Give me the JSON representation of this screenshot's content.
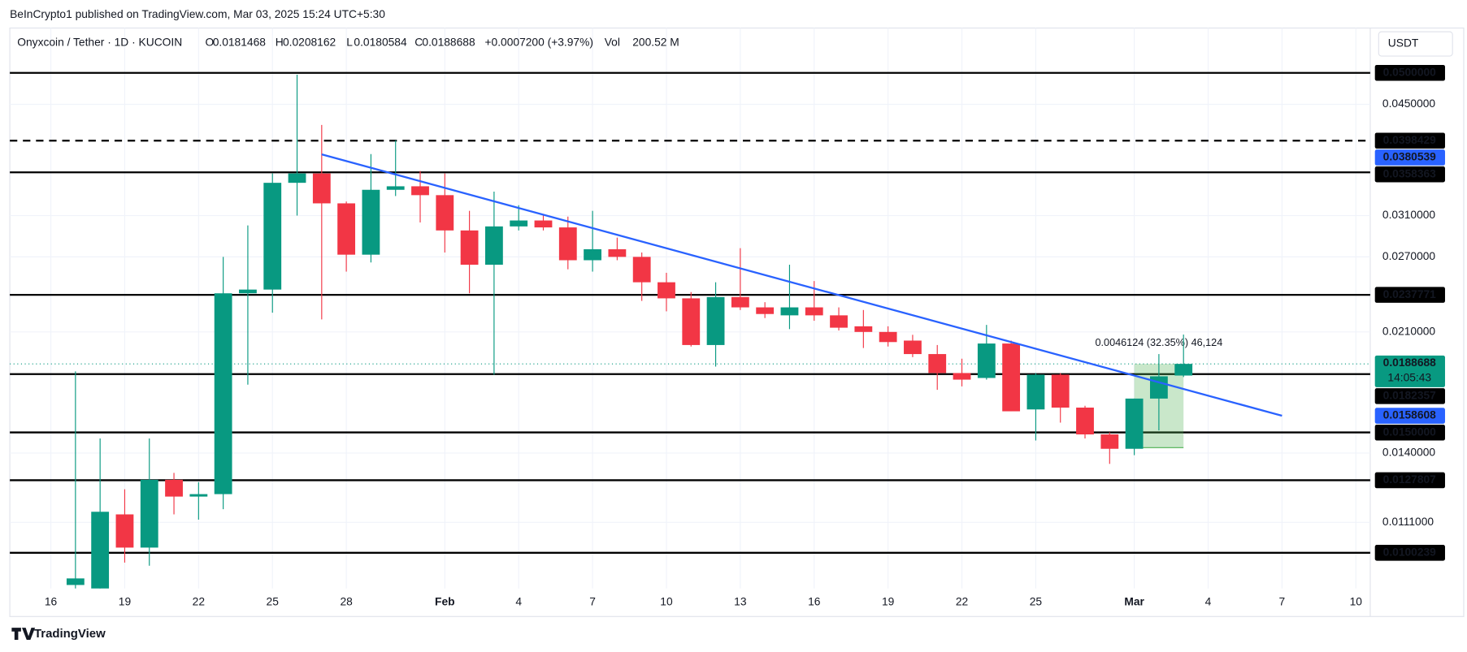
{
  "header": "BeInCrypto1 published on TradingView.com, Mar 03, 2025 15:24 UTC+5:30",
  "footer": "TradingView",
  "currency_button": "USDT",
  "legend": {
    "symbol": "Onyxcoin / Tether · 1D · KUCOIN",
    "fields": [
      {
        "key": "O",
        "value": "0.0181468"
      },
      {
        "key": "H",
        "value": "0.0208162"
      },
      {
        "key": "L",
        "value": "0.0180584"
      },
      {
        "key": "C",
        "value": "0.0188688"
      }
    ],
    "change": "+0.0007200 (+3.97%)",
    "vol_key": "Vol",
    "vol": "200.52 M"
  },
  "chart_data": {
    "type": "candlestick",
    "log_scale": true,
    "grid": true,
    "up_color": "#089981",
    "down_color": "#f23645",
    "x": [
      "2025-01-17",
      "2025-01-18",
      "2025-01-19",
      "2025-01-20",
      "2025-01-21",
      "2025-01-22",
      "2025-01-23",
      "2025-01-24",
      "2025-01-25",
      "2025-01-26",
      "2025-01-27",
      "2025-01-28",
      "2025-01-29",
      "2025-01-30",
      "2025-01-31",
      "2025-02-01",
      "2025-02-02",
      "2025-02-03",
      "2025-02-04",
      "2025-02-05",
      "2025-02-06",
      "2025-02-07",
      "2025-02-08",
      "2025-02-09",
      "2025-02-10",
      "2025-02-11",
      "2025-02-12",
      "2025-02-13",
      "2025-02-14",
      "2025-02-15",
      "2025-02-16",
      "2025-02-17",
      "2025-02-18",
      "2025-02-19",
      "2025-02-20",
      "2025-02-21",
      "2025-02-22",
      "2025-02-23",
      "2025-02-24",
      "2025-02-25",
      "2025-02-26",
      "2025-02-27",
      "2025-02-28",
      "2025-03-01",
      "2025-03-02",
      "2025-03-03"
    ],
    "open": [
      0.009,
      0.0088,
      0.0114,
      0.0102,
      0.0128,
      0.0121,
      0.0122,
      0.0239,
      0.0242,
      0.0346,
      0.0357,
      0.0323,
      0.0272,
      0.0338,
      0.0342,
      0.0332,
      0.0295,
      0.0263,
      0.0299,
      0.0305,
      0.0298,
      0.0267,
      0.0277,
      0.027,
      0.0248,
      0.0235,
      0.0201,
      0.0236,
      0.0228,
      0.0222,
      0.0228,
      0.0222,
      0.0214,
      0.021,
      0.0204,
      0.0195,
      0.0183,
      0.018,
      0.0202,
      0.0162,
      0.0182,
      0.0163,
      0.0149,
      0.0142,
      0.0168,
      0.0181468
    ],
    "high": [
      0.0184,
      0.0147,
      0.0124,
      0.0147,
      0.0131,
      0.0127,
      0.027,
      0.03,
      0.0357,
      0.0497,
      0.042,
      0.0325,
      0.0381,
      0.0399,
      0.036,
      0.0357,
      0.0315,
      0.0336,
      0.0321,
      0.0311,
      0.0309,
      0.0315,
      0.0288,
      0.0274,
      0.0256,
      0.024,
      0.0248,
      0.0278,
      0.0232,
      0.0263,
      0.0249,
      0.0228,
      0.0226,
      0.0214,
      0.0208,
      0.0201,
      0.0192,
      0.0215,
      0.0204,
      0.0183,
      0.0183,
      0.0164,
      0.015,
      0.0168,
      0.0195,
      0.0208162
    ],
    "low": [
      0.0085,
      0.0085,
      0.0097,
      0.0096,
      0.0114,
      0.0112,
      0.0116,
      0.0176,
      0.0224,
      0.031,
      0.0219,
      0.0257,
      0.0265,
      0.0331,
      0.0303,
      0.0274,
      0.0239,
      0.0182,
      0.0295,
      0.0295,
      0.0259,
      0.0257,
      0.0267,
      0.0233,
      0.0225,
      0.02,
      0.0187,
      0.0226,
      0.022,
      0.0212,
      0.0218,
      0.0211,
      0.0199,
      0.02,
      0.0193,
      0.0173,
      0.0175,
      0.0179,
      0.0161,
      0.0146,
      0.0155,
      0.0147,
      0.0135,
      0.0139,
      0.0151,
      0.0180584
    ],
    "close": [
      0.0092,
      0.0115,
      0.0102,
      0.0128,
      0.0121,
      0.0122,
      0.0239,
      0.0242,
      0.0346,
      0.0357,
      0.0323,
      0.0272,
      0.0338,
      0.0342,
      0.0332,
      0.0295,
      0.0263,
      0.0299,
      0.0305,
      0.0298,
      0.0267,
      0.0277,
      0.027,
      0.0248,
      0.0235,
      0.0201,
      0.0236,
      0.0228,
      0.0223,
      0.0228,
      0.0222,
      0.0213,
      0.021,
      0.0203,
      0.0195,
      0.0183,
      0.0179,
      0.0202,
      0.0161,
      0.0182,
      0.0163,
      0.0149,
      0.0142,
      0.0168,
      0.0181,
      0.0188688
    ],
    "xlim": [
      "2025-01-14T08:00:00Z",
      "2025-03-10T14:00:00Z"
    ],
    "xticks": [
      {
        "value": "2025-01-16",
        "label": "16"
      },
      {
        "value": "2025-01-19",
        "label": "19"
      },
      {
        "value": "2025-01-22",
        "label": "22"
      },
      {
        "value": "2025-01-25",
        "label": "25"
      },
      {
        "value": "2025-01-28",
        "label": "28"
      },
      {
        "value": "2025-02-01",
        "label": "Feb"
      },
      {
        "value": "2025-02-04",
        "label": "4"
      },
      {
        "value": "2025-02-07",
        "label": "7"
      },
      {
        "value": "2025-02-10",
        "label": "10"
      },
      {
        "value": "2025-02-13",
        "label": "13"
      },
      {
        "value": "2025-02-16",
        "label": "16"
      },
      {
        "value": "2025-02-19",
        "label": "19"
      },
      {
        "value": "2025-02-22",
        "label": "22"
      },
      {
        "value": "2025-02-25",
        "label": "25"
      },
      {
        "value": "2025-03-01",
        "label": "Mar"
      },
      {
        "value": "2025-03-04",
        "label": "4"
      },
      {
        "value": "2025-03-07",
        "label": "7"
      },
      {
        "value": "2025-03-10",
        "label": "10"
      }
    ],
    "ylim": [
      0.008895,
      0.0581
    ],
    "yticks": [
      {
        "value": 0.045,
        "label": "0.0450000"
      },
      {
        "value": 0.031,
        "label": "0.0310000"
      },
      {
        "value": 0.027,
        "label": "0.0270000"
      },
      {
        "value": 0.021,
        "label": "0.0210000"
      },
      {
        "value": 0.014,
        "label": "0.0140000"
      },
      {
        "value": 0.0111,
        "label": "0.0111000"
      }
    ],
    "levels": [
      {
        "value": 0.05,
        "label": "0.0500000",
        "style": "solid"
      },
      {
        "value": 0.0398429,
        "label": "0.0398429",
        "style": "dashed"
      },
      {
        "value": 0.0358363,
        "label": "0.0358363",
        "style": "solid"
      },
      {
        "value": 0.0237771,
        "label": "0.0237771",
        "style": "solid"
      },
      {
        "value": 0.0182357,
        "label": "0.0182357",
        "style": "solid"
      },
      {
        "value": 0.015,
        "label": "0.0150000",
        "style": "solid"
      },
      {
        "value": 0.0127807,
        "label": "0.0127807",
        "style": "solid"
      },
      {
        "value": 0.0100239,
        "label": "0.0100239",
        "style": "solid"
      }
    ],
    "level_color": "#000000",
    "trendline": {
      "x": [
        "2025-01-27",
        "2025-03-07"
      ],
      "values": [
        0.0380539,
        0.0158608
      ],
      "value_labels": [
        "0.0380539",
        "0.0158608"
      ],
      "color": "#2962ff"
    },
    "last_price": {
      "value": 0.0188688,
      "label": "0.0188688",
      "countdown": "14:05:43",
      "color": "#089981"
    },
    "measure": {
      "x": [
        "2025-03-01",
        "2025-03-03"
      ],
      "values": [
        0.0142564,
        0.0188688
      ],
      "label": "0.0046124 (32.35%) 46,124",
      "color": "#4caf50"
    }
  }
}
